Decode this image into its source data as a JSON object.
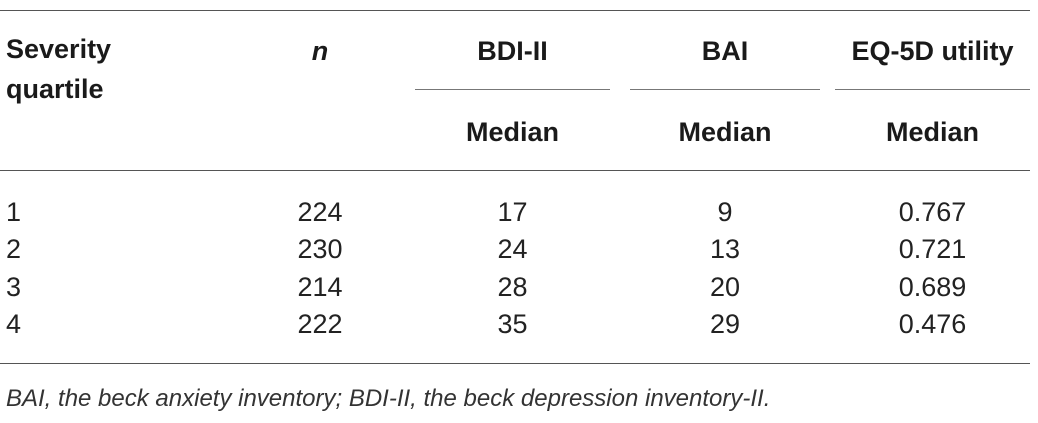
{
  "table": {
    "headers": {
      "severity_line1": "Severity",
      "severity_line2": "quartile",
      "n": "n",
      "bdi": "BDI-II",
      "bai": "BAI",
      "eq5d": "EQ-5D utility"
    },
    "subheaders": {
      "bdi": "Median",
      "bai": "Median",
      "eq5d": "Median"
    },
    "rows": [
      {
        "quartile": "1",
        "n": "224",
        "bdi": "17",
        "bai": "9",
        "eq5d": "0.767"
      },
      {
        "quartile": "2",
        "n": "230",
        "bdi": "24",
        "bai": "13",
        "eq5d": "0.721"
      },
      {
        "quartile": "3",
        "n": "214",
        "bdi": "28",
        "bai": "20",
        "eq5d": "0.689"
      },
      {
        "quartile": "4",
        "n": "222",
        "bdi": "35",
        "bai": "29",
        "eq5d": "0.476"
      }
    ]
  },
  "footnote": "BAI, the beck anxiety inventory; BDI-II, the beck depression inventory-II."
}
